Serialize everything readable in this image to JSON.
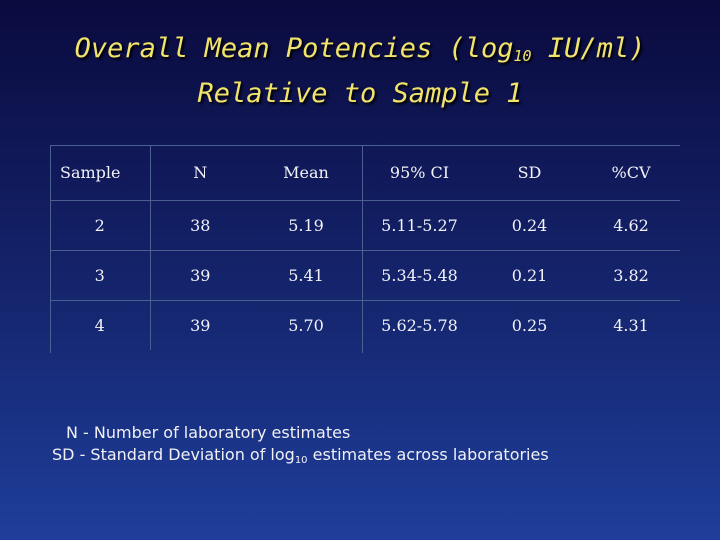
{
  "title": {
    "line1_prefix": "Overall Mean Potencies (log",
    "line1_subscript": "10",
    "line1_suffix": " IU/ml)",
    "line2": "Relative to Sample 1"
  },
  "table": {
    "headers": [
      "Sample",
      "N",
      "Mean",
      "95% CI",
      "SD",
      "%CV"
    ],
    "rows": [
      [
        "2",
        "38",
        "5.19",
        "5.11-5.27",
        "0.24",
        "4.62"
      ],
      [
        "3",
        "39",
        "5.41",
        "5.34-5.48",
        "0.21",
        "3.82"
      ],
      [
        "4",
        "39",
        "5.70",
        "5.62-5.78",
        "0.25",
        "4.31"
      ]
    ]
  },
  "footnotes": {
    "line1": "N - Number of laboratory estimates",
    "line2_prefix": "SD - Standard Deviation of log",
    "line2_subscript": "10",
    "line2_suffix": " estimates across laboratories"
  }
}
